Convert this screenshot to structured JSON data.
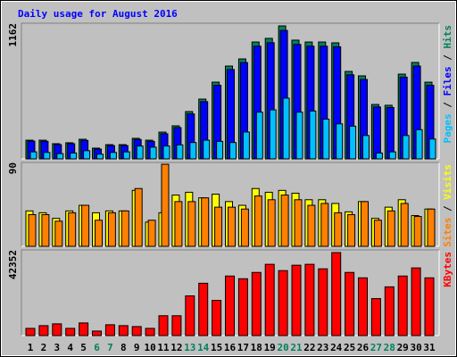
{
  "chart_data": [
    {
      "type": "bar",
      "title": "Daily usage for August 2016",
      "legend_separator": " / ",
      "ylim": [
        0,
        1162
      ],
      "yticks": [
        1162
      ],
      "series": [
        {
          "name": "Hits",
          "color": "#00805c",
          "values": [
            160,
            160,
            130,
            138,
            168,
            92,
            122,
            122,
            176,
            160,
            229,
            283,
            405,
            512,
            657,
            795,
            856,
            1001,
            1032,
            1139,
            1017,
            1001,
            1001,
            994,
            749,
            711,
            466,
            459,
            726,
            826,
            657
          ]
        },
        {
          "name": "Files",
          "color": "#0000ff",
          "values": [
            152,
            150,
            122,
            130,
            158,
            84,
            114,
            114,
            166,
            150,
            215,
            268,
            385,
            490,
            630,
            765,
            825,
            965,
            995,
            1100,
            980,
            965,
            965,
            960,
            720,
            680,
            445,
            440,
            700,
            795,
            630
          ]
        },
        {
          "name": "Pages",
          "color": "#00c0ff",
          "values": [
            60,
            55,
            45,
            50,
            70,
            40,
            55,
            60,
            110,
            100,
            110,
            120,
            140,
            160,
            150,
            140,
            230,
            400,
            420,
            520,
            400,
            410,
            340,
            300,
            280,
            200,
            50,
            60,
            200,
            250,
            170
          ]
        }
      ]
    },
    {
      "type": "bar",
      "legend_separator": " / ",
      "ylim": [
        0,
        90
      ],
      "yticks": [
        90
      ],
      "series": [
        {
          "name": "Visits",
          "color": "#ffff00",
          "values": [
            38,
            36,
            30,
            38,
            44,
            36,
            38,
            38,
            60,
            26,
            36,
            55,
            58,
            52,
            56,
            48,
            44,
            62,
            58,
            60,
            57,
            50,
            50,
            46,
            37,
            48,
            30,
            42,
            50,
            33,
            40
          ]
        },
        {
          "name": "Sites",
          "color": "#ff8000",
          "values": [
            34,
            34,
            27,
            36,
            44,
            28,
            36,
            38,
            62,
            28,
            88,
            48,
            48,
            52,
            42,
            42,
            40,
            54,
            50,
            55,
            50,
            44,
            46,
            36,
            34,
            48,
            28,
            38,
            46,
            32,
            40
          ]
        }
      ]
    },
    {
      "type": "bar",
      "ylim": [
        0,
        42352
      ],
      "yticks": [
        42352
      ],
      "categories": [
        "1",
        "2",
        "3",
        "4",
        "5",
        "6",
        "7",
        "8",
        "9",
        "10",
        "11",
        "12",
        "13",
        "14",
        "15",
        "16",
        "17",
        "18",
        "19",
        "20",
        "21",
        "22",
        "23",
        "24",
        "25",
        "26",
        "27",
        "28",
        "29",
        "30",
        "31"
      ],
      "category_colors": [
        "#000000",
        "#000000",
        "#000000",
        "#000000",
        "#000000",
        "#00805c",
        "#00805c",
        "#000000",
        "#000000",
        "#000000",
        "#000000",
        "#000000",
        "#00805c",
        "#00805c",
        "#000000",
        "#000000",
        "#000000",
        "#000000",
        "#000000",
        "#00805c",
        "#00805c",
        "#000000",
        "#000000",
        "#000000",
        "#000000",
        "#000000",
        "#00805c",
        "#00805c",
        "#000000",
        "#000000",
        "#000000"
      ],
      "series": [
        {
          "name": "KBytes",
          "color": "#ff0000",
          "values": [
            3568,
            4906,
            5798,
            3568,
            6244,
            2230,
            5352,
            4906,
            4460,
            3568,
            9812,
            9812,
            19624,
            25868,
            17394,
            29436,
            28098,
            31220,
            35234,
            32112,
            34788,
            35234,
            33004,
            41032,
            31220,
            28544,
            18286,
            24084,
            29436,
            33450,
            28544
          ]
        }
      ]
    }
  ]
}
